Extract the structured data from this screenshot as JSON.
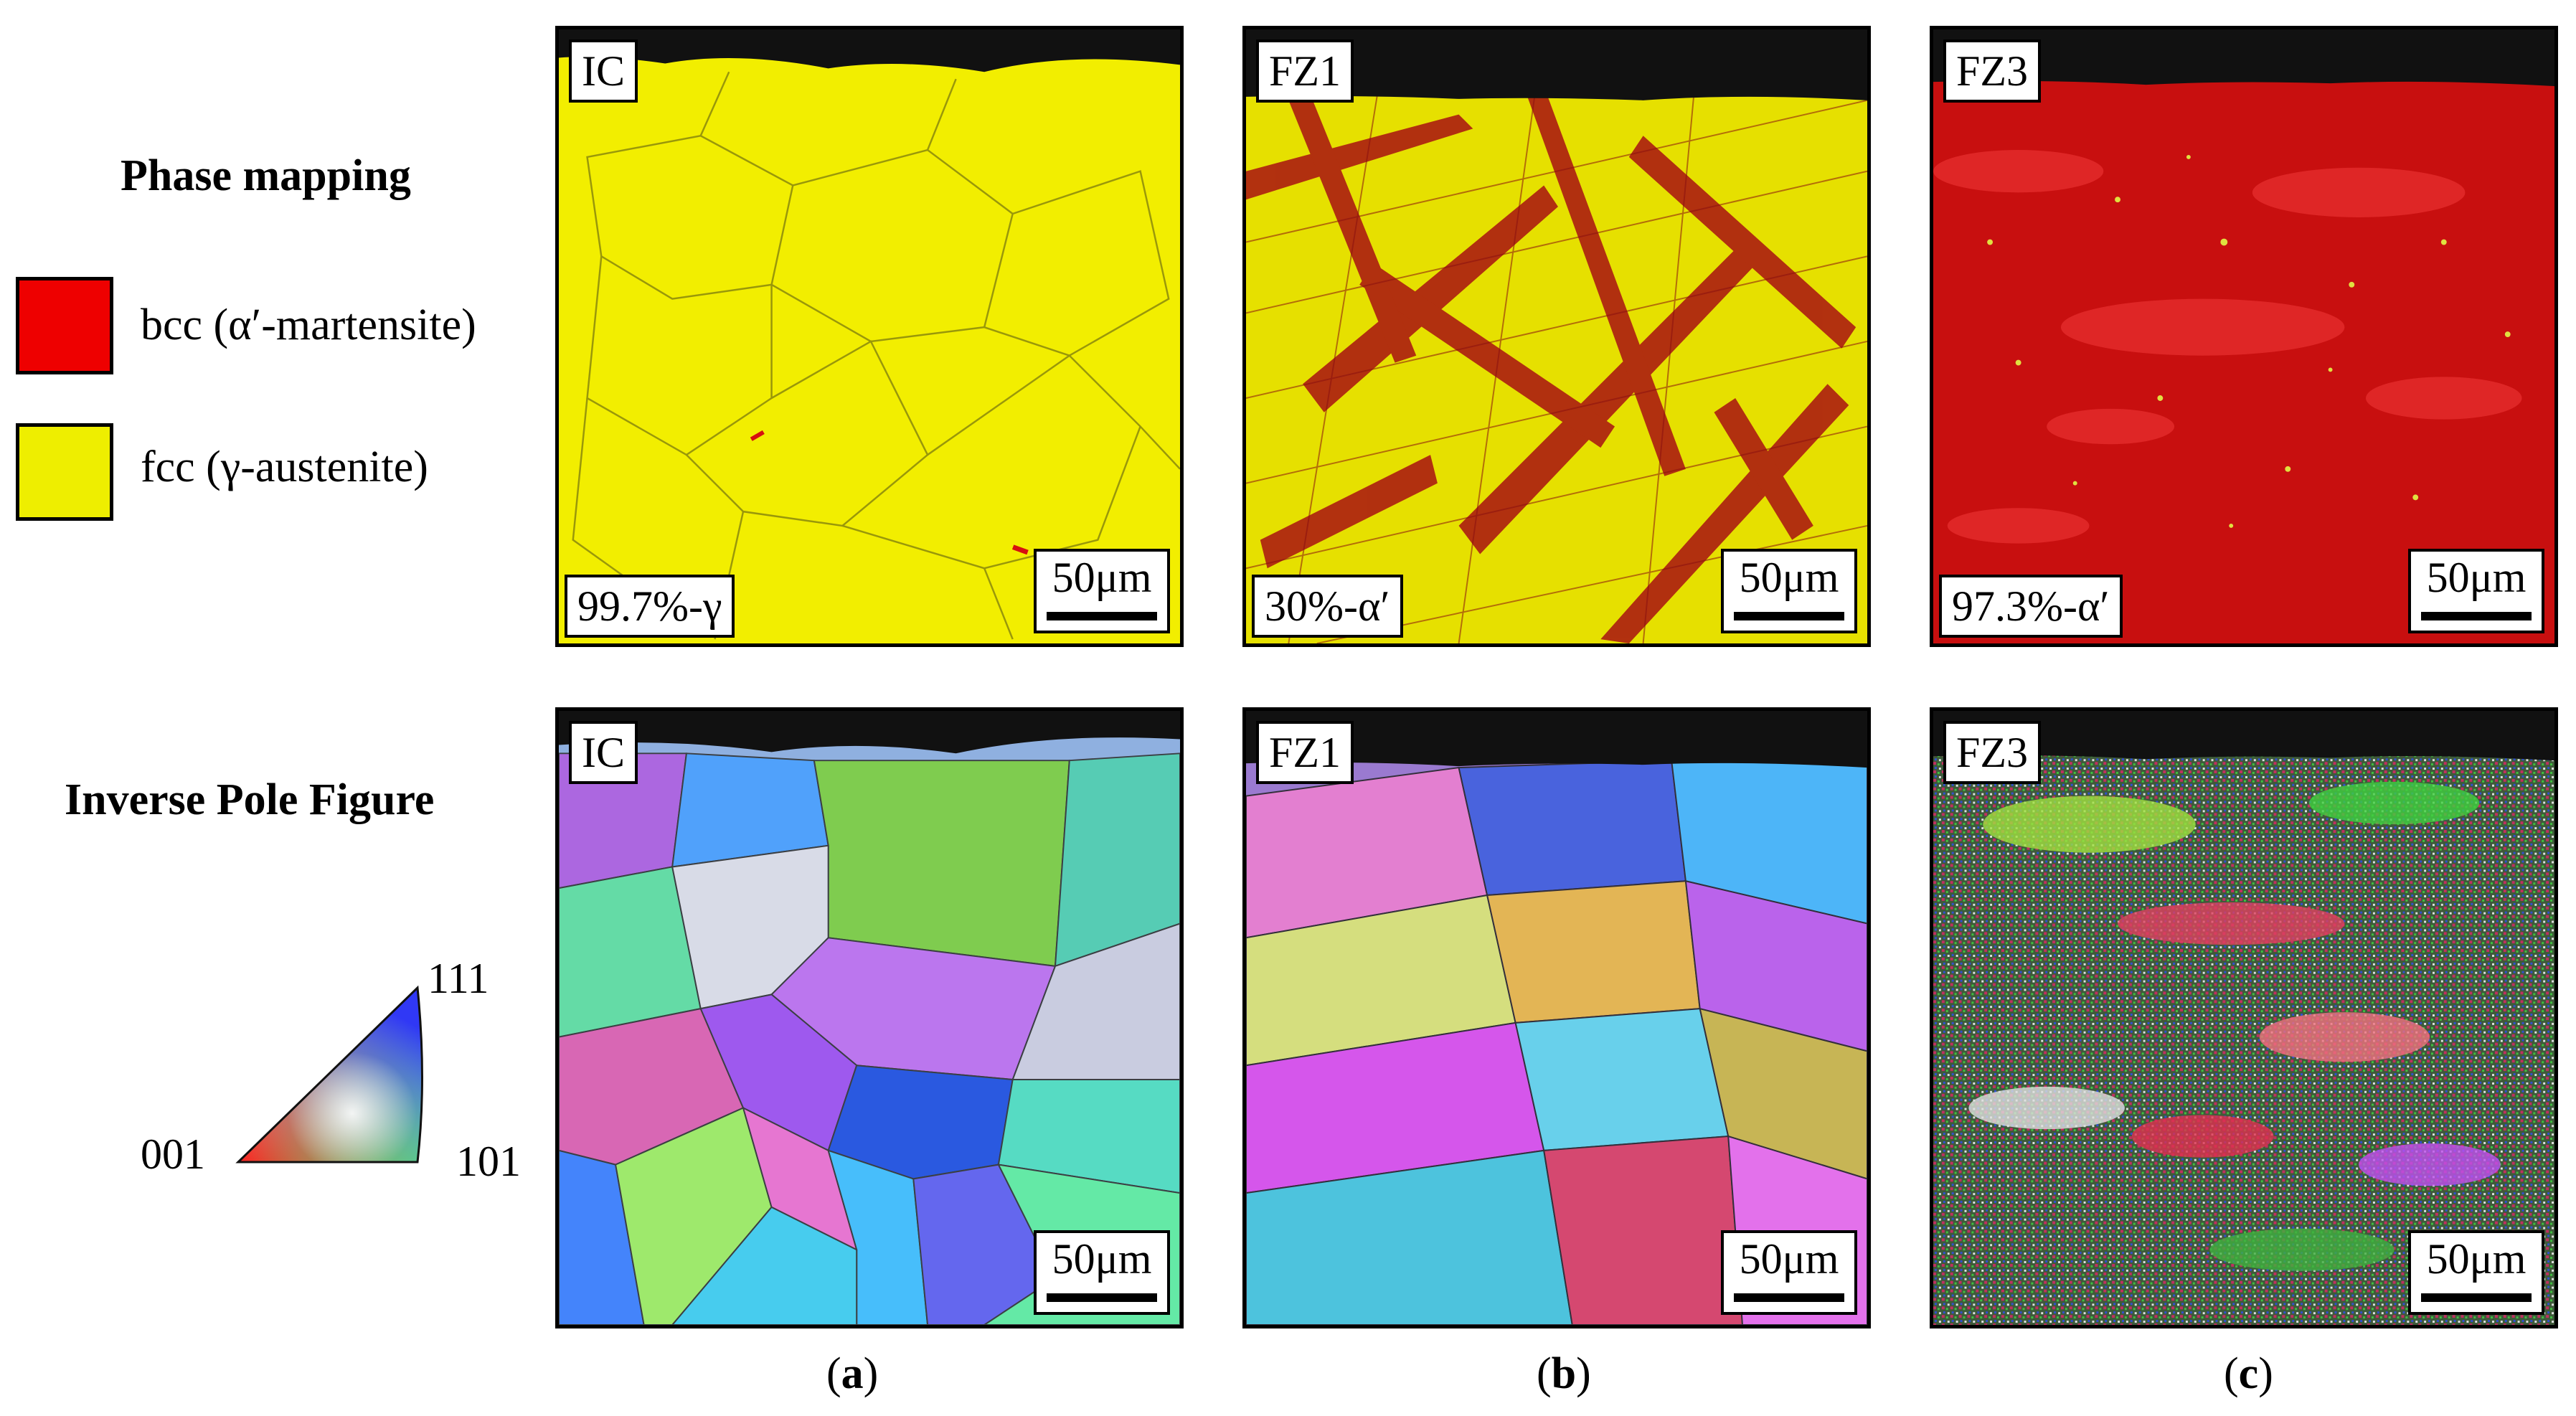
{
  "legend": {
    "phase_title": "Phase mapping",
    "ipf_title": "Inverse Pole Figure",
    "items": [
      {
        "label": "bcc (α′-martensite)",
        "color": "#ee0000"
      },
      {
        "label": "fcc (γ-austenite)",
        "color": "#eeee00"
      }
    ],
    "ipf_triangle": {
      "corner_001": "001",
      "corner_101": "101",
      "corner_111": "111"
    }
  },
  "panels_top": [
    {
      "label": "IC",
      "fraction": "99.7%-γ",
      "scale": "50μm",
      "base_color": "#f2ee00"
    },
    {
      "label": "FZ1",
      "fraction": "30%-α′",
      "scale": "50μm",
      "base_color": "#e6e000"
    },
    {
      "label": "FZ3",
      "fraction": "97.3%-α′",
      "scale": "50μm",
      "base_color": "#c80f0f"
    }
  ],
  "panels_bottom": [
    {
      "label": "IC",
      "scale": "50μm"
    },
    {
      "label": "FZ1",
      "scale": "50μm"
    },
    {
      "label": "FZ3",
      "scale": "50μm"
    }
  ],
  "captions": [
    {
      "open": "(",
      "letter": "a",
      "close": ")"
    },
    {
      "open": "(",
      "letter": "b",
      "close": ")"
    },
    {
      "open": "(",
      "letter": "c",
      "close": ")"
    }
  ]
}
